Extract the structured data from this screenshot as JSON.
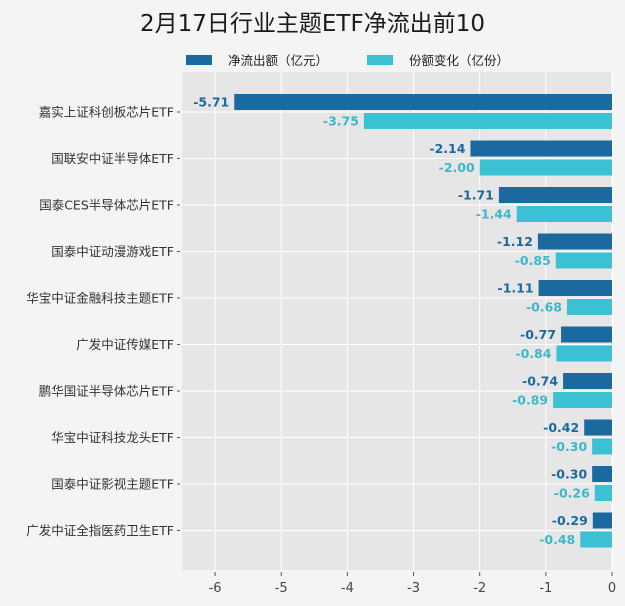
{
  "chart_data": {
    "type": "bar",
    "orientation": "horizontal",
    "title": "2月17日行业主题ETF净流出前10",
    "categories": [
      "嘉实上证科创板芯片ETF",
      "国联安中证半导体ETF",
      "国泰CES半导体芯片ETF",
      "国泰中证动漫游戏ETF",
      "华宝中证金融科技主题ETF",
      "广发中证传媒ETF",
      "鹏华国证半导体芯片ETF",
      "华宝中证科技龙头ETF",
      "国泰中证影视主题ETF",
      "广发中证全指医药卫生ETF"
    ],
    "series": [
      {
        "name": "净流出额（亿元）",
        "color": "#1a6aa0",
        "label_color": "#1a6aa0",
        "values": [
          -5.71,
          -2.14,
          -1.71,
          -1.12,
          -1.11,
          -0.77,
          -0.74,
          -0.42,
          -0.3,
          -0.29
        ]
      },
      {
        "name": "份额变化（亿份）",
        "color": "#3cc0d4",
        "label_color": "#3bb8cc",
        "values": [
          -3.75,
          -2.0,
          -1.44,
          -0.85,
          -0.68,
          -0.84,
          -0.89,
          -0.3,
          -0.26,
          -0.48
        ]
      }
    ],
    "xlim": [
      -6.5,
      0
    ],
    "xticks": [
      -6,
      -5,
      -4,
      -3,
      -2,
      -1,
      0
    ],
    "xtick_labels": [
      "-6",
      "-5",
      "-4",
      "-3",
      "-2",
      "-1",
      "0"
    ],
    "grid": true,
    "legend_position": "top",
    "xlabel": "",
    "ylabel": ""
  }
}
